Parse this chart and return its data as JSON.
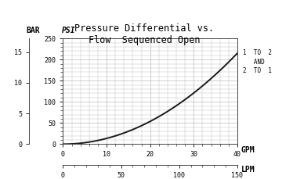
{
  "title_line1": "Pressure Differential vs.",
  "title_line2": "Flow  Sequenced Open",
  "bar_label": "BAR",
  "psi_label": "PSI",
  "gpm_label": "GPM",
  "lpm_label": "LPM",
  "annotation": "1  TO  2\n   AND\n2  TO  1",
  "bar_yticks": [
    0,
    5,
    10,
    15
  ],
  "psi_yticks": [
    0,
    50,
    100,
    150,
    200,
    250
  ],
  "gpm_xticks": [
    0,
    10,
    20,
    30,
    40
  ],
  "lpm_xticks": [
    0,
    50,
    100,
    150
  ],
  "x_gpm_max": 40,
  "x_lpm_max": 150,
  "y_psi_max": 250,
  "y_bar_max": 17.241,
  "curve_color": "#1a1a1a",
  "grid_color": "#bbbbbb",
  "background_color": "#ffffff",
  "title_fontsize": 8.5,
  "label_fontsize": 7,
  "tick_fontsize": 6,
  "annot_fontsize": 5.5,
  "curve_coeff": 0.1344
}
